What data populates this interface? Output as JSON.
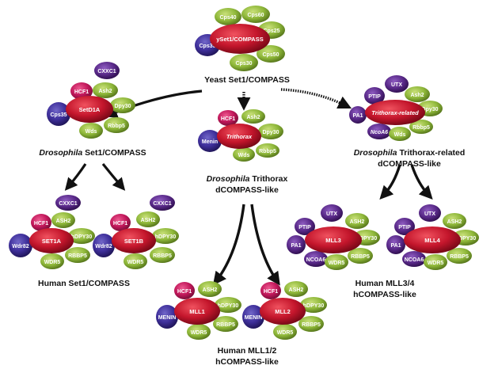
{
  "colors": {
    "green": "#8fb83a",
    "green_dark": "#5c7d1e",
    "red": "#c4162c",
    "red_dark": "#7e0a18",
    "purple": "#5a2a8a",
    "purple_dark": "#2f1050",
    "pink": "#c2185b",
    "pink_dark": "#7a0e39",
    "arrow": "#111111"
  },
  "captions": {
    "yeast": {
      "line1": "Yeast Set1/COMPASS"
    },
    "dm_set1": {
      "italic": "Drosophila",
      "rest": " Set1/COMPASS"
    },
    "dm_trx": {
      "italic": "Drosophila",
      "rest": " Trithorax",
      "line2": "dCOMPASS-like"
    },
    "dm_trr": {
      "italic": "Drosophila",
      "rest": " Trithorax-related",
      "line2": "dCOMPASS-like"
    },
    "hs_set1": {
      "line1": "Human Set1/COMPASS"
    },
    "hs_mll12": {
      "line1": "Human MLL1/2",
      "line2": "hCOMPASS-like"
    },
    "hs_mll34": {
      "line1": "Human MLL3/4",
      "line2": "hCOMPASS-like"
    }
  },
  "complexes": {
    "yeast": {
      "core": "ySet1/COMPASS",
      "cps40": "Cps40",
      "cps60": "Cps60",
      "cps25": "Cps25",
      "cps35": "Cps35",
      "cps50": "Cps50",
      "cps30": "Cps30"
    },
    "dm_set1": {
      "core": "SetD1A",
      "cxxc1": "CXXC1",
      "hcf1": "HCF1",
      "ash2": "Ash2",
      "cps35": "Cps35",
      "dpy30": "Dpy30",
      "rbbp5": "Rbbp5",
      "wds": "Wds"
    },
    "dm_trx": {
      "core": "Trithorax",
      "hcf1": "HCF1",
      "ash2": "Ash2",
      "dpy30": "Dpy30",
      "menin": "Menin",
      "rbbp5": "Rbbp5",
      "wds": "Wds"
    },
    "dm_trr": {
      "core": "Trithorax-related",
      "ptip": "PTIP",
      "utx": "UTX",
      "ash2": "Ash2",
      "pa1": "PA1",
      "dpy30": "Dpy30",
      "ncoa6": "NcoA6",
      "rbbp5": "Rbbp5",
      "wds": "Wds"
    },
    "hs_set1a": {
      "core": "SET1A",
      "cxxc1": "CXXC1",
      "hcf1": "HCF1",
      "ash2": "ASH2",
      "wdr82": "Wdr82",
      "hdpy30": "hDPY30",
      "rbbp5": "RBBP5",
      "wdr5": "WDR5"
    },
    "hs_set1b": {
      "core": "SET1B",
      "cxxc1": "CXXC1",
      "hcf1": "HCF1",
      "ash2": "ASH2",
      "wdr82": "Wdr82",
      "hdpy30": "hDPY30",
      "rbbp5": "RBBP5",
      "wdr5": "WDR5"
    },
    "hs_mll1": {
      "core": "MLL1",
      "hcf1": "HCF1",
      "ash2": "ASH2",
      "hdpy30": "hDPY30",
      "menin": "MENIN",
      "rbbp5": "RBBP5",
      "wdr5": "WDR5"
    },
    "hs_mll2": {
      "core": "MLL2",
      "hcf1": "HCF1",
      "ash2": "ASH2",
      "hdpy30": "hDPY30",
      "menin": "MENIN",
      "rbbp5": "RBBP5",
      "wdr5": "WDR5"
    },
    "hs_mll3": {
      "core": "MLL3",
      "utx": "UTX",
      "ptip": "PTIP",
      "ash2": "ASH2",
      "pa1": "PA1",
      "hdpy30": "hDPY30",
      "ncoa6": "NCOA6",
      "rbbp5": "RBBP5",
      "wdr5": "WDR5"
    },
    "hs_mll4": {
      "core": "MLL4",
      "utx": "UTX",
      "ptip": "PTIP",
      "ash2": "ASH2",
      "pa1": "PA1",
      "hdpy30": "hDPY30",
      "ncoa6": "NCOA6",
      "rbbp5": "RBBP5",
      "wdr5": "WDR5"
    }
  }
}
